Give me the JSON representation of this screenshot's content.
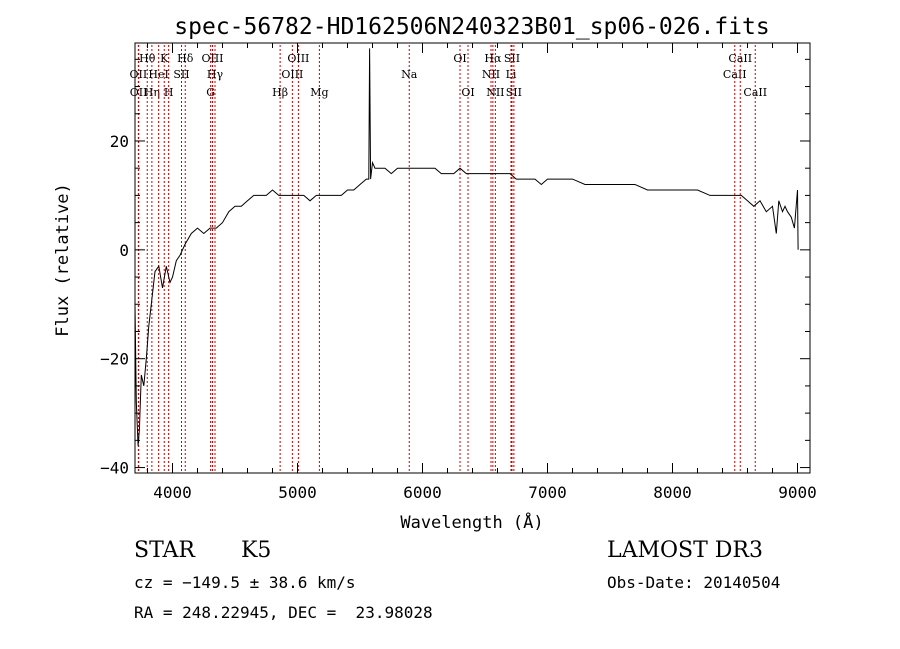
{
  "chart_data": {
    "type": "line",
    "title": "spec-56782-HD162506N240323B01_sp06-026.fits",
    "xlabel": "Wavelength (Å)",
    "ylabel": "Flux (relative)",
    "xlim": [
      3700,
      9100
    ],
    "ylim": [
      -41,
      38
    ],
    "xticks": [
      4000,
      5000,
      6000,
      7000,
      8000,
      9000
    ],
    "yticks": [
      -40,
      -20,
      0,
      20
    ],
    "tick_labels_x": [
      "4000",
      "5000",
      "6000",
      "7000",
      "8000",
      "9000"
    ],
    "tick_labels_y": [
      "−40",
      "−20",
      "0",
      "20"
    ],
    "grid": false,
    "line_color": "#000000",
    "marker_color": "#cc0000",
    "series": [
      {
        "x": [
          3700,
          3710,
          3725,
          3735,
          3750,
          3770,
          3790,
          3810,
          3830,
          3860,
          3890,
          3920,
          3950,
          3980,
          4000,
          4030,
          4060,
          4100,
          4150,
          4200,
          4250,
          4300,
          4350,
          4400,
          4450,
          4500,
          4550,
          4600,
          4650,
          4700,
          4750,
          4800,
          4850,
          4900,
          4950,
          5000,
          5050,
          5100,
          5150,
          5200,
          5250,
          5300,
          5350,
          5400,
          5450,
          5500,
          5550,
          5570,
          5577,
          5585,
          5600,
          5620,
          5650,
          5700,
          5750,
          5800,
          5850,
          5900,
          5950,
          6000,
          6050,
          6100,
          6150,
          6200,
          6250,
          6300,
          6350,
          6400,
          6450,
          6500,
          6550,
          6600,
          6650,
          6700,
          6750,
          6800,
          6850,
          6900,
          6950,
          7000,
          7100,
          7200,
          7300,
          7400,
          7500,
          7600,
          7700,
          7800,
          7900,
          8000,
          8100,
          8200,
          8300,
          8400,
          8500,
          8550,
          8600,
          8650,
          8700,
          8750,
          8800,
          8830,
          8850,
          8880,
          8900,
          8920,
          8950,
          8975,
          9000,
          9005
        ],
        "y": [
          -10,
          -28,
          -36,
          -33,
          -23,
          -25,
          -20,
          -14,
          -10,
          -4,
          -3,
          -7,
          -3,
          -6,
          -5,
          -2,
          -1,
          1,
          3,
          4,
          3,
          4,
          4,
          5,
          7,
          8,
          8,
          9,
          10,
          10,
          10,
          11,
          10,
          10,
          10,
          10,
          10,
          9,
          10,
          10,
          10,
          10,
          10,
          11,
          11,
          12,
          13,
          13,
          37,
          13,
          16,
          15,
          15,
          15,
          14,
          15,
          15,
          15,
          15,
          15,
          15,
          15,
          14,
          14,
          14,
          15,
          14,
          14,
          14,
          14,
          14,
          14,
          14,
          14,
          13,
          13,
          13,
          13,
          12,
          13,
          13,
          13,
          12,
          12,
          12,
          12,
          12,
          11,
          11,
          11,
          11,
          11,
          10,
          10,
          10,
          10,
          9,
          8,
          9,
          7,
          8,
          3,
          9,
          7,
          8,
          7,
          6,
          4,
          11,
          0
        ]
      }
    ],
    "line_markers": [
      {
        "label": "OII",
        "wavelength": 3727,
        "row": 2
      },
      {
        "label": "OII",
        "wavelength": 3729,
        "row": 3
      },
      {
        "label": "Hθ",
        "wavelength": 3798,
        "row": 1
      },
      {
        "label": "Hη",
        "wavelength": 3835,
        "row": 3
      },
      {
        "label": "HeI",
        "wavelength": 3889,
        "row": 2
      },
      {
        "label": "K",
        "wavelength": 3934,
        "row": 1
      },
      {
        "label": "H",
        "wavelength": 3969,
        "row": 3
      },
      {
        "label": "SII",
        "wavelength": 4072,
        "row": 2
      },
      {
        "label": "Hδ",
        "wavelength": 4102,
        "row": 1
      },
      {
        "label": "G",
        "wavelength": 4305,
        "row": 3
      },
      {
        "label": "OIII",
        "wavelength": 4320,
        "row": 1
      },
      {
        "label": "Hγ",
        "wavelength": 4340,
        "row": 2
      },
      {
        "label": "Hβ",
        "wavelength": 4861,
        "row": 3
      },
      {
        "label": "OIII",
        "wavelength": 4959,
        "row": 2
      },
      {
        "label": "OIII",
        "wavelength": 5007,
        "row": 1
      },
      {
        "label": "Mg",
        "wavelength": 5175,
        "row": 3
      },
      {
        "label": "Na",
        "wavelength": 5894,
        "row": 2
      },
      {
        "label": "OI",
        "wavelength": 6300,
        "row": 1
      },
      {
        "label": "OI",
        "wavelength": 6364,
        "row": 3
      },
      {
        "label": "NII",
        "wavelength": 6548,
        "row": 2
      },
      {
        "label": "Hα",
        "wavelength": 6563,
        "row": 1
      },
      {
        "label": "NII",
        "wavelength": 6583,
        "row": 3
      },
      {
        "label": "Li",
        "wavelength": 6708,
        "row": 2
      },
      {
        "label": "SII",
        "wavelength": 6716,
        "row": 1
      },
      {
        "label": "SII",
        "wavelength": 6731,
        "row": 3
      },
      {
        "label": "CaII",
        "wavelength": 8498,
        "row": 2
      },
      {
        "label": "CaII",
        "wavelength": 8542,
        "row": 1
      },
      {
        "label": "CaII",
        "wavelength": 8662,
        "row": 3
      }
    ]
  },
  "info": {
    "class": "STAR",
    "subclass": "K5",
    "survey": "LAMOST DR3",
    "cz": "cz = −149.5 ± 38.6 km/s",
    "obs_date": "Obs-Date: 20140504",
    "coords": "RA = 248.22945, DEC =  23.98028"
  }
}
